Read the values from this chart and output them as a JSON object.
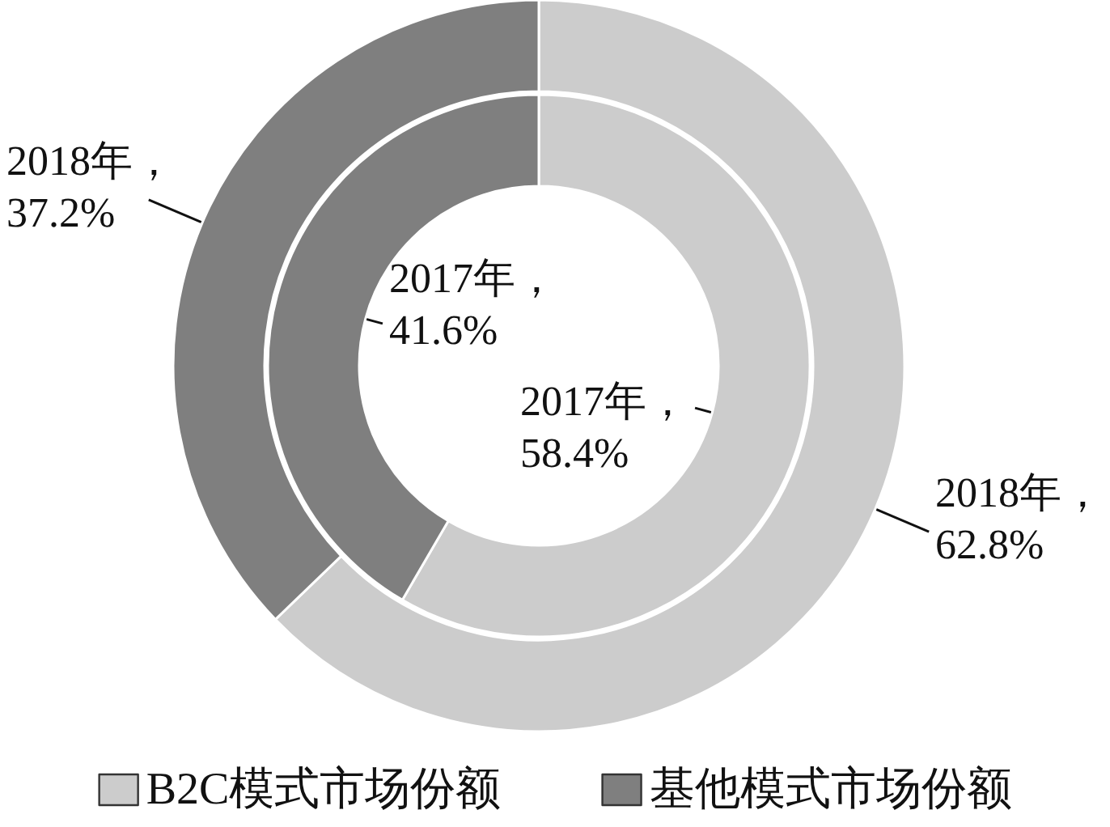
{
  "chart_data": {
    "type": "donut",
    "categories": [
      "B2C模式市场份额",
      "基他模式市场份额"
    ],
    "colors": [
      "#cccccc",
      "#7f7f7f"
    ],
    "series": [
      {
        "values": [
          58.4,
          41.6
        ],
        "value_labels": [
          "2017年，\n58.4%",
          "2017年，\n41.6%"
        ]
      },
      {
        "values": [
          62.8,
          37.2
        ],
        "value_labels": [
          "2018年，\n62.8%",
          "2018年，\n37.2%"
        ]
      }
    ],
    "legend": "bottom"
  }
}
